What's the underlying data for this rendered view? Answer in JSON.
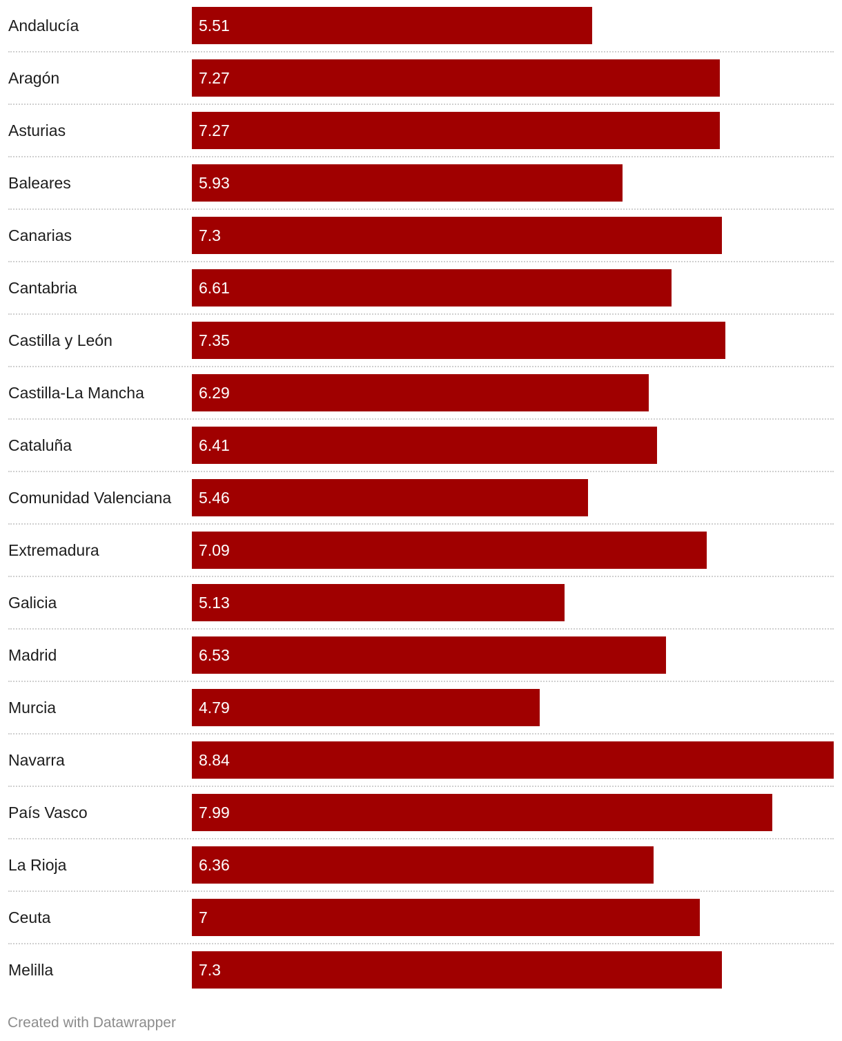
{
  "chart_data": {
    "type": "bar",
    "orientation": "horizontal",
    "categories": [
      "Andalucía",
      "Aragón",
      "Asturias",
      "Baleares",
      "Canarias",
      "Cantabria",
      "Castilla y León",
      "Castilla-La Mancha",
      "Cataluña",
      "Comunidad Valenciana",
      "Extremadura",
      "Galicia",
      "Madrid",
      "Murcia",
      "Navarra",
      "País Vasco",
      "La Rioja",
      "Ceuta",
      "Melilla"
    ],
    "values": [
      5.51,
      7.27,
      7.27,
      5.93,
      7.3,
      6.61,
      7.35,
      6.29,
      6.41,
      5.46,
      7.09,
      5.13,
      6.53,
      4.79,
      8.84,
      7.99,
      6.36,
      7,
      7.3
    ],
    "value_labels": [
      "5.51",
      "7.27",
      "7.27",
      "5.93",
      "7.3",
      "6.61",
      "7.35",
      "6.29",
      "6.41",
      "5.46",
      "7.09",
      "5.13",
      "6.53",
      "4.79",
      "8.84",
      "7.99",
      "6.36",
      "7",
      "7.3"
    ],
    "xlim": [
      0,
      8.84
    ],
    "title": "",
    "xlabel": "",
    "ylabel": "",
    "bar_color": "#a00000",
    "grid": false
  },
  "footer": {
    "credit": "Created with Datawrapper"
  }
}
